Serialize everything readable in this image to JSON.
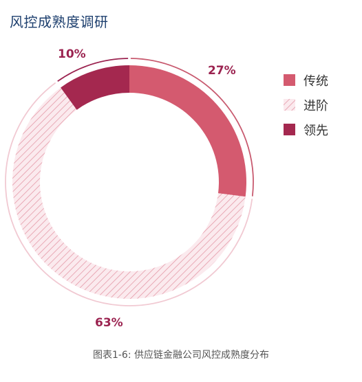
{
  "title": "风控成熟度调研",
  "caption": "图表1-6: 供应链金融公司风控成熟度分布",
  "colors": {
    "traditional": "#d45a6f",
    "advanced_stripe": "#e59aa8",
    "advanced_bg": "#fbeaee",
    "leading": "#a4284f",
    "label": "#9b2350"
  },
  "chart_data": {
    "type": "pie",
    "variant": "donut",
    "title": "风控成熟度调研",
    "slices": [
      {
        "label": "传统",
        "value": 27,
        "display": "27%"
      },
      {
        "label": "进阶",
        "value": 63,
        "display": "63%"
      },
      {
        "label": "领先",
        "value": 10,
        "display": "10%"
      }
    ],
    "legend": [
      "传统",
      "进阶",
      "领先"
    ],
    "legend_position": "right"
  }
}
